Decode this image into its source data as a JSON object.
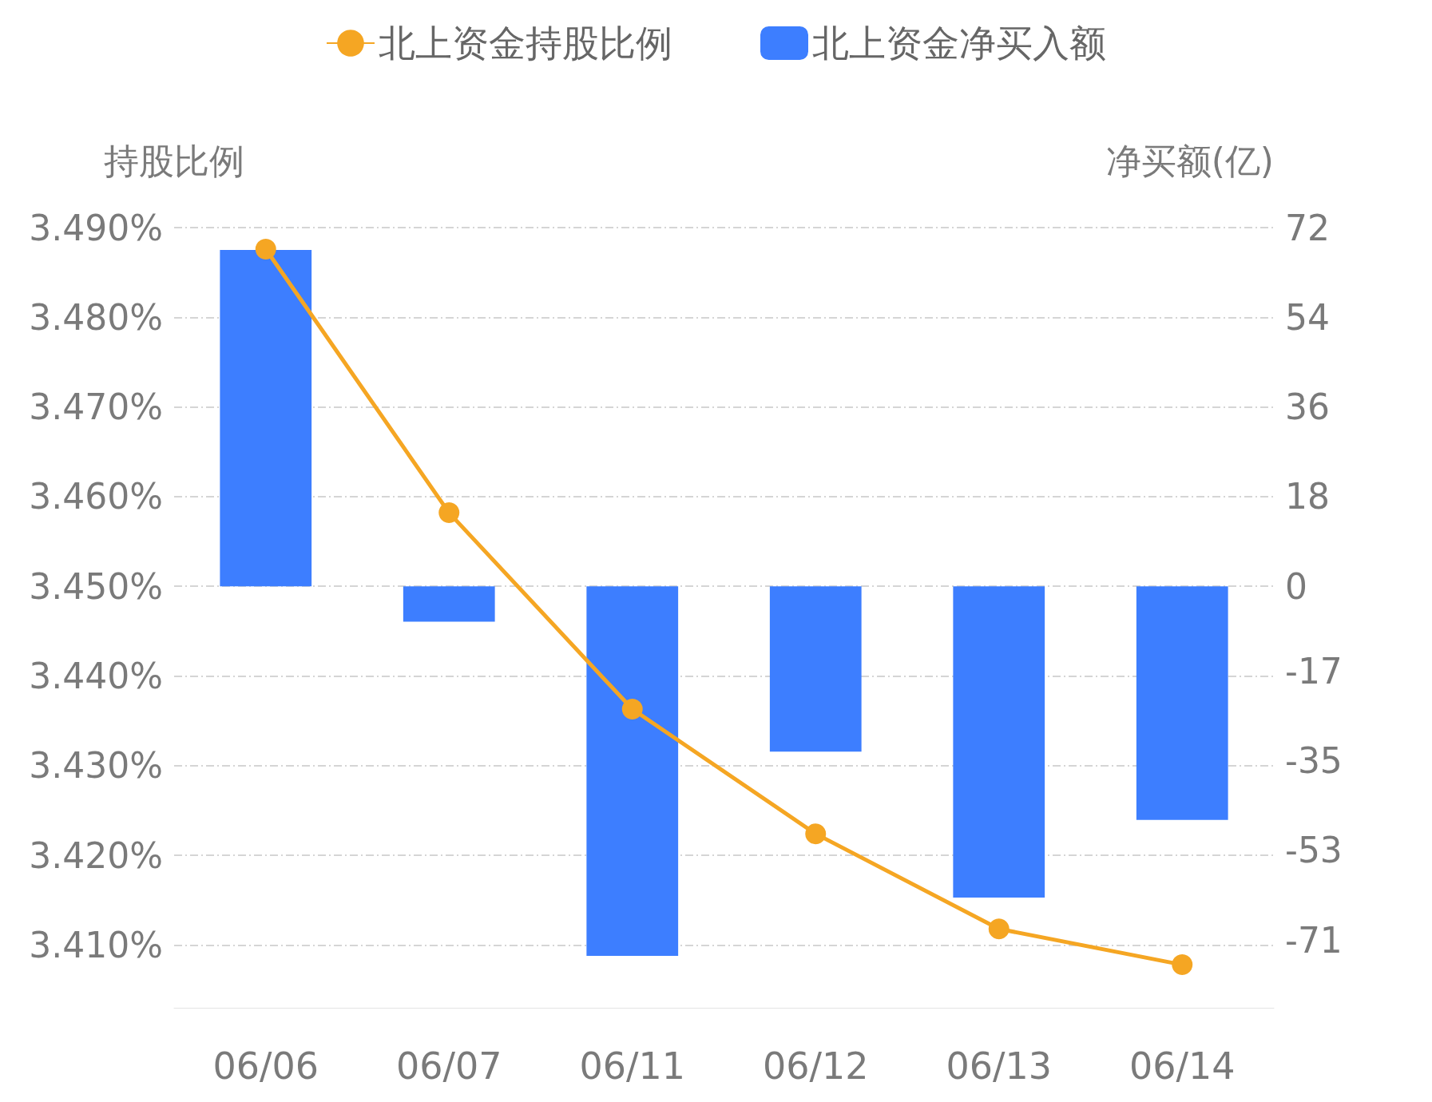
{
  "chart_data": {
    "type": "bar",
    "categories": [
      "06/06",
      "06/07",
      "06/11",
      "06/12",
      "06/13",
      "06/14"
    ],
    "ylabel": "持股比例",
    "y2label": "净买额(亿)",
    "series": [
      {
        "name": "北上资金持股比例",
        "type": "line",
        "color": "#f5a623",
        "values": [
          3.4876,
          3.4582,
          3.4363,
          3.4224,
          3.4118,
          3.4078
        ]
      },
      {
        "name": "北上资金净买入额",
        "axis": "y2",
        "color": "#3d7eff",
        "values": [
          67.5,
          -7.1,
          -74.2,
          -33.2,
          -62.5,
          -46.9
        ]
      }
    ],
    "ylim": [
      3.403,
      3.49
    ],
    "yticks": [
      {
        "value": 3.41,
        "label": "3.410%"
      },
      {
        "value": 3.42,
        "label": "3.420%"
      },
      {
        "value": 3.43,
        "label": "3.430%"
      },
      {
        "value": 3.44,
        "label": "3.440%"
      },
      {
        "value": 3.45,
        "label": "3.450%"
      },
      {
        "value": 3.46,
        "label": "3.460%"
      },
      {
        "value": 3.47,
        "label": "3.470%"
      },
      {
        "value": 3.48,
        "label": "3.480%"
      },
      {
        "value": 3.49,
        "label": "3.490%"
      }
    ],
    "y2lim": [
      -84.6,
      72
    ],
    "y2ticks": [
      -71,
      -53,
      -35,
      -17,
      0,
      18,
      36,
      54,
      72
    ],
    "grid": "y",
    "legend": "top",
    "marker": "circle",
    "line_style": "solid"
  }
}
